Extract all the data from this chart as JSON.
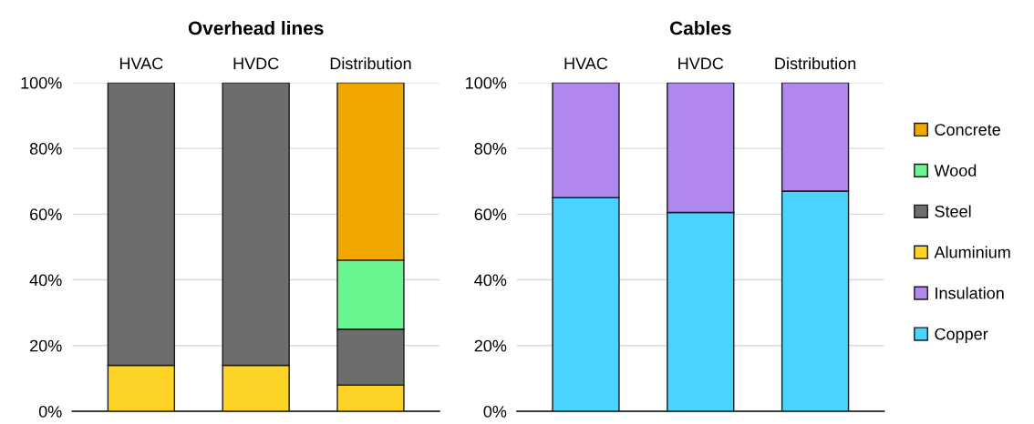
{
  "chart_data": [
    {
      "type": "bar",
      "title": "Overhead lines",
      "categories": [
        "HVAC",
        "HVDC",
        "Distribution"
      ],
      "stacked": true,
      "legend": "right",
      "grid": "y",
      "ylim": [
        0,
        100
      ],
      "yticks": [
        {
          "value": 0,
          "label": "0%"
        },
        {
          "value": 20,
          "label": "20%"
        },
        {
          "value": 40,
          "label": "40%"
        },
        {
          "value": 60,
          "label": "60%"
        },
        {
          "value": 80,
          "label": "80%"
        },
        {
          "value": 100,
          "label": "100%"
        }
      ],
      "series": [
        {
          "name": "Aluminium",
          "color": "#fdd426",
          "values": [
            14,
            14,
            8
          ]
        },
        {
          "name": "Steel",
          "color": "#6d6d6d",
          "values": [
            86,
            86,
            17
          ]
        },
        {
          "name": "Wood",
          "color": "#69f590",
          "values": [
            null,
            null,
            21
          ]
        },
        {
          "name": "Concrete",
          "color": "#f0a800",
          "values": [
            null,
            null,
            54
          ]
        }
      ]
    },
    {
      "type": "bar",
      "title": "Cables",
      "categories": [
        "HVAC",
        "HVDC",
        "Distribution"
      ],
      "stacked": true,
      "legend": "right",
      "grid": "y",
      "ylim": [
        0,
        100
      ],
      "yticks": [
        {
          "value": 0,
          "label": "0%"
        },
        {
          "value": 20,
          "label": "20%"
        },
        {
          "value": 40,
          "label": "40%"
        },
        {
          "value": 60,
          "label": "60%"
        },
        {
          "value": 80,
          "label": "80%"
        },
        {
          "value": 100,
          "label": "100%"
        }
      ],
      "series": [
        {
          "name": "Copper",
          "color": "#48d4fe",
          "values": [
            65,
            60.5,
            67
          ]
        },
        {
          "name": "Insulation",
          "color": "#b087ee",
          "values": [
            35,
            39.5,
            33
          ]
        }
      ]
    }
  ]
}
